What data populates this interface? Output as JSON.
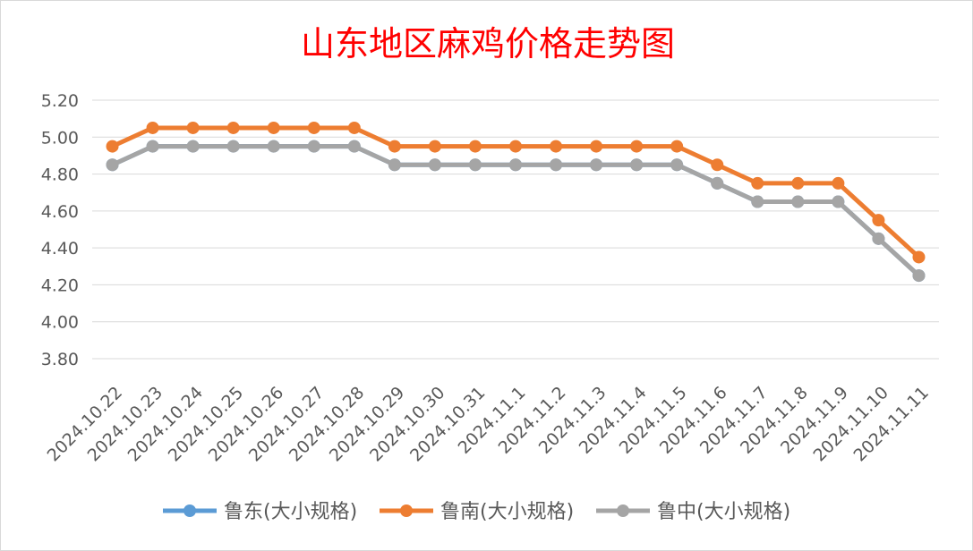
{
  "chart_data": {
    "type": "line",
    "title": "山东地区麻鸡价格走势图",
    "xlabel": "",
    "ylabel": "",
    "ylim": [
      3.8,
      5.2
    ],
    "ytick_step": 0.2,
    "ytick_labels": [
      "3.80",
      "4.00",
      "4.20",
      "4.40",
      "4.60",
      "4.80",
      "5.00",
      "5.20"
    ],
    "categories": [
      "2024.10.22",
      "2024.10.23",
      "2024.10.24",
      "2024.10.25",
      "2024.10.26",
      "2024.10.27",
      "2024.10.28",
      "2024.10.29",
      "2024.10.30",
      "2024.10.31",
      "2024.11.1",
      "2024.11.2",
      "2024.11.3",
      "2024.11.4",
      "2024.11.5",
      "2024.11.6",
      "2024.11.7",
      "2024.11.8",
      "2024.11.9",
      "2024.11.10",
      "2024.11.11"
    ],
    "grid": true,
    "legend_position": "bottom",
    "title_color": "#ff0000",
    "series": [
      {
        "name": "鲁东(大小规格)",
        "color": "#5b9bd5",
        "values": [
          4.85,
          4.95,
          4.95,
          4.95,
          4.95,
          4.95,
          4.95,
          4.85,
          4.85,
          4.85,
          4.85,
          4.85,
          4.85,
          4.85,
          4.85,
          4.75,
          4.65,
          4.65,
          4.65,
          4.45,
          4.25
        ]
      },
      {
        "name": "鲁南(大小规格)",
        "color": "#ed7d31",
        "values": [
          4.95,
          5.05,
          5.05,
          5.05,
          5.05,
          5.05,
          5.05,
          4.95,
          4.95,
          4.95,
          4.95,
          4.95,
          4.95,
          4.95,
          4.95,
          4.85,
          4.75,
          4.75,
          4.75,
          4.55,
          4.35
        ]
      },
      {
        "name": "鲁中(大小规格)",
        "color": "#a5a5a5",
        "values": [
          4.85,
          4.95,
          4.95,
          4.95,
          4.95,
          4.95,
          4.95,
          4.85,
          4.85,
          4.85,
          4.85,
          4.85,
          4.85,
          4.85,
          4.85,
          4.75,
          4.65,
          4.65,
          4.65,
          4.45,
          4.25
        ]
      }
    ]
  }
}
